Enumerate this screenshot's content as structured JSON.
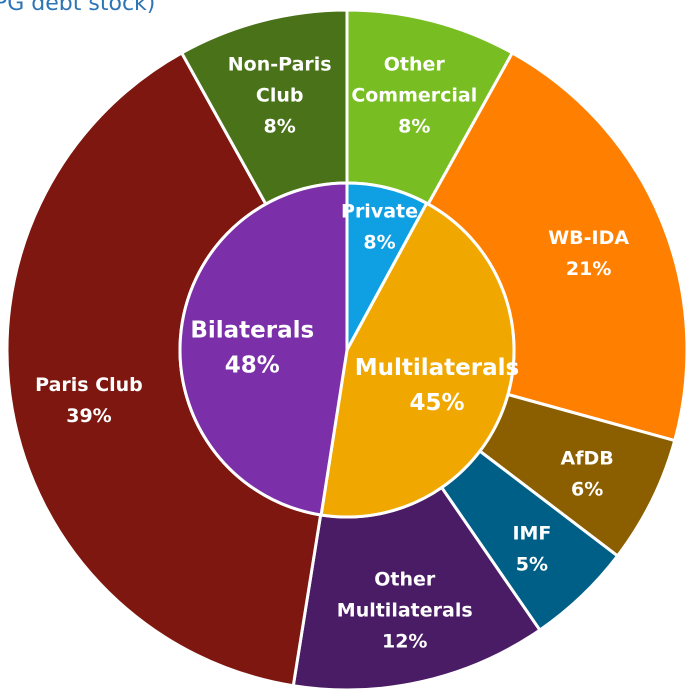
{
  "chart_data": {
    "type": "pie",
    "variant": "sunburst",
    "title": "PG debt stock)",
    "inner_ring": [
      {
        "name": "Private",
        "value": 8,
        "label": "Private",
        "pct_label": "8%",
        "color": "#0fa0e4"
      },
      {
        "name": "Multilaterals",
        "value": 45,
        "label": "Multilaterals",
        "pct_label": "45%",
        "color": "#f0a800"
      },
      {
        "name": "Bilaterals",
        "value": 48,
        "label": "Bilaterals",
        "pct_label": "48%",
        "color": "#7b2fa8"
      }
    ],
    "outer_ring": [
      {
        "name": "Other Commercial",
        "value": 8,
        "label_lines": [
          "Other",
          "Commercial"
        ],
        "pct_label": "8%",
        "color": "#78be22"
      },
      {
        "name": "WB-IDA",
        "value": 21,
        "label_lines": [
          "WB-IDA"
        ],
        "pct_label": "21%",
        "color": "#ff8000"
      },
      {
        "name": "AfDB",
        "value": 6,
        "label_lines": [
          "AfDB"
        ],
        "pct_label": "6%",
        "color": "#8b5e00"
      },
      {
        "name": "IMF",
        "value": 5,
        "label_lines": [
          "IMF"
        ],
        "pct_label": "5%",
        "color": "#005f87"
      },
      {
        "name": "Other Multilaterals",
        "value": 12,
        "label_lines": [
          "Other",
          "Multilaterals"
        ],
        "pct_label": "12%",
        "color": "#4a1c66"
      },
      {
        "name": "Paris Club",
        "value": 39,
        "label_lines": [
          "Paris Club"
        ],
        "pct_label": "39%",
        "color": "#7d1710"
      },
      {
        "name": "Non-Paris Club",
        "value": 8,
        "label_lines": [
          "Non-Paris",
          "Club"
        ],
        "pct_label": "8%",
        "color": "#4a7219"
      }
    ],
    "border_color": "#ffffff"
  }
}
